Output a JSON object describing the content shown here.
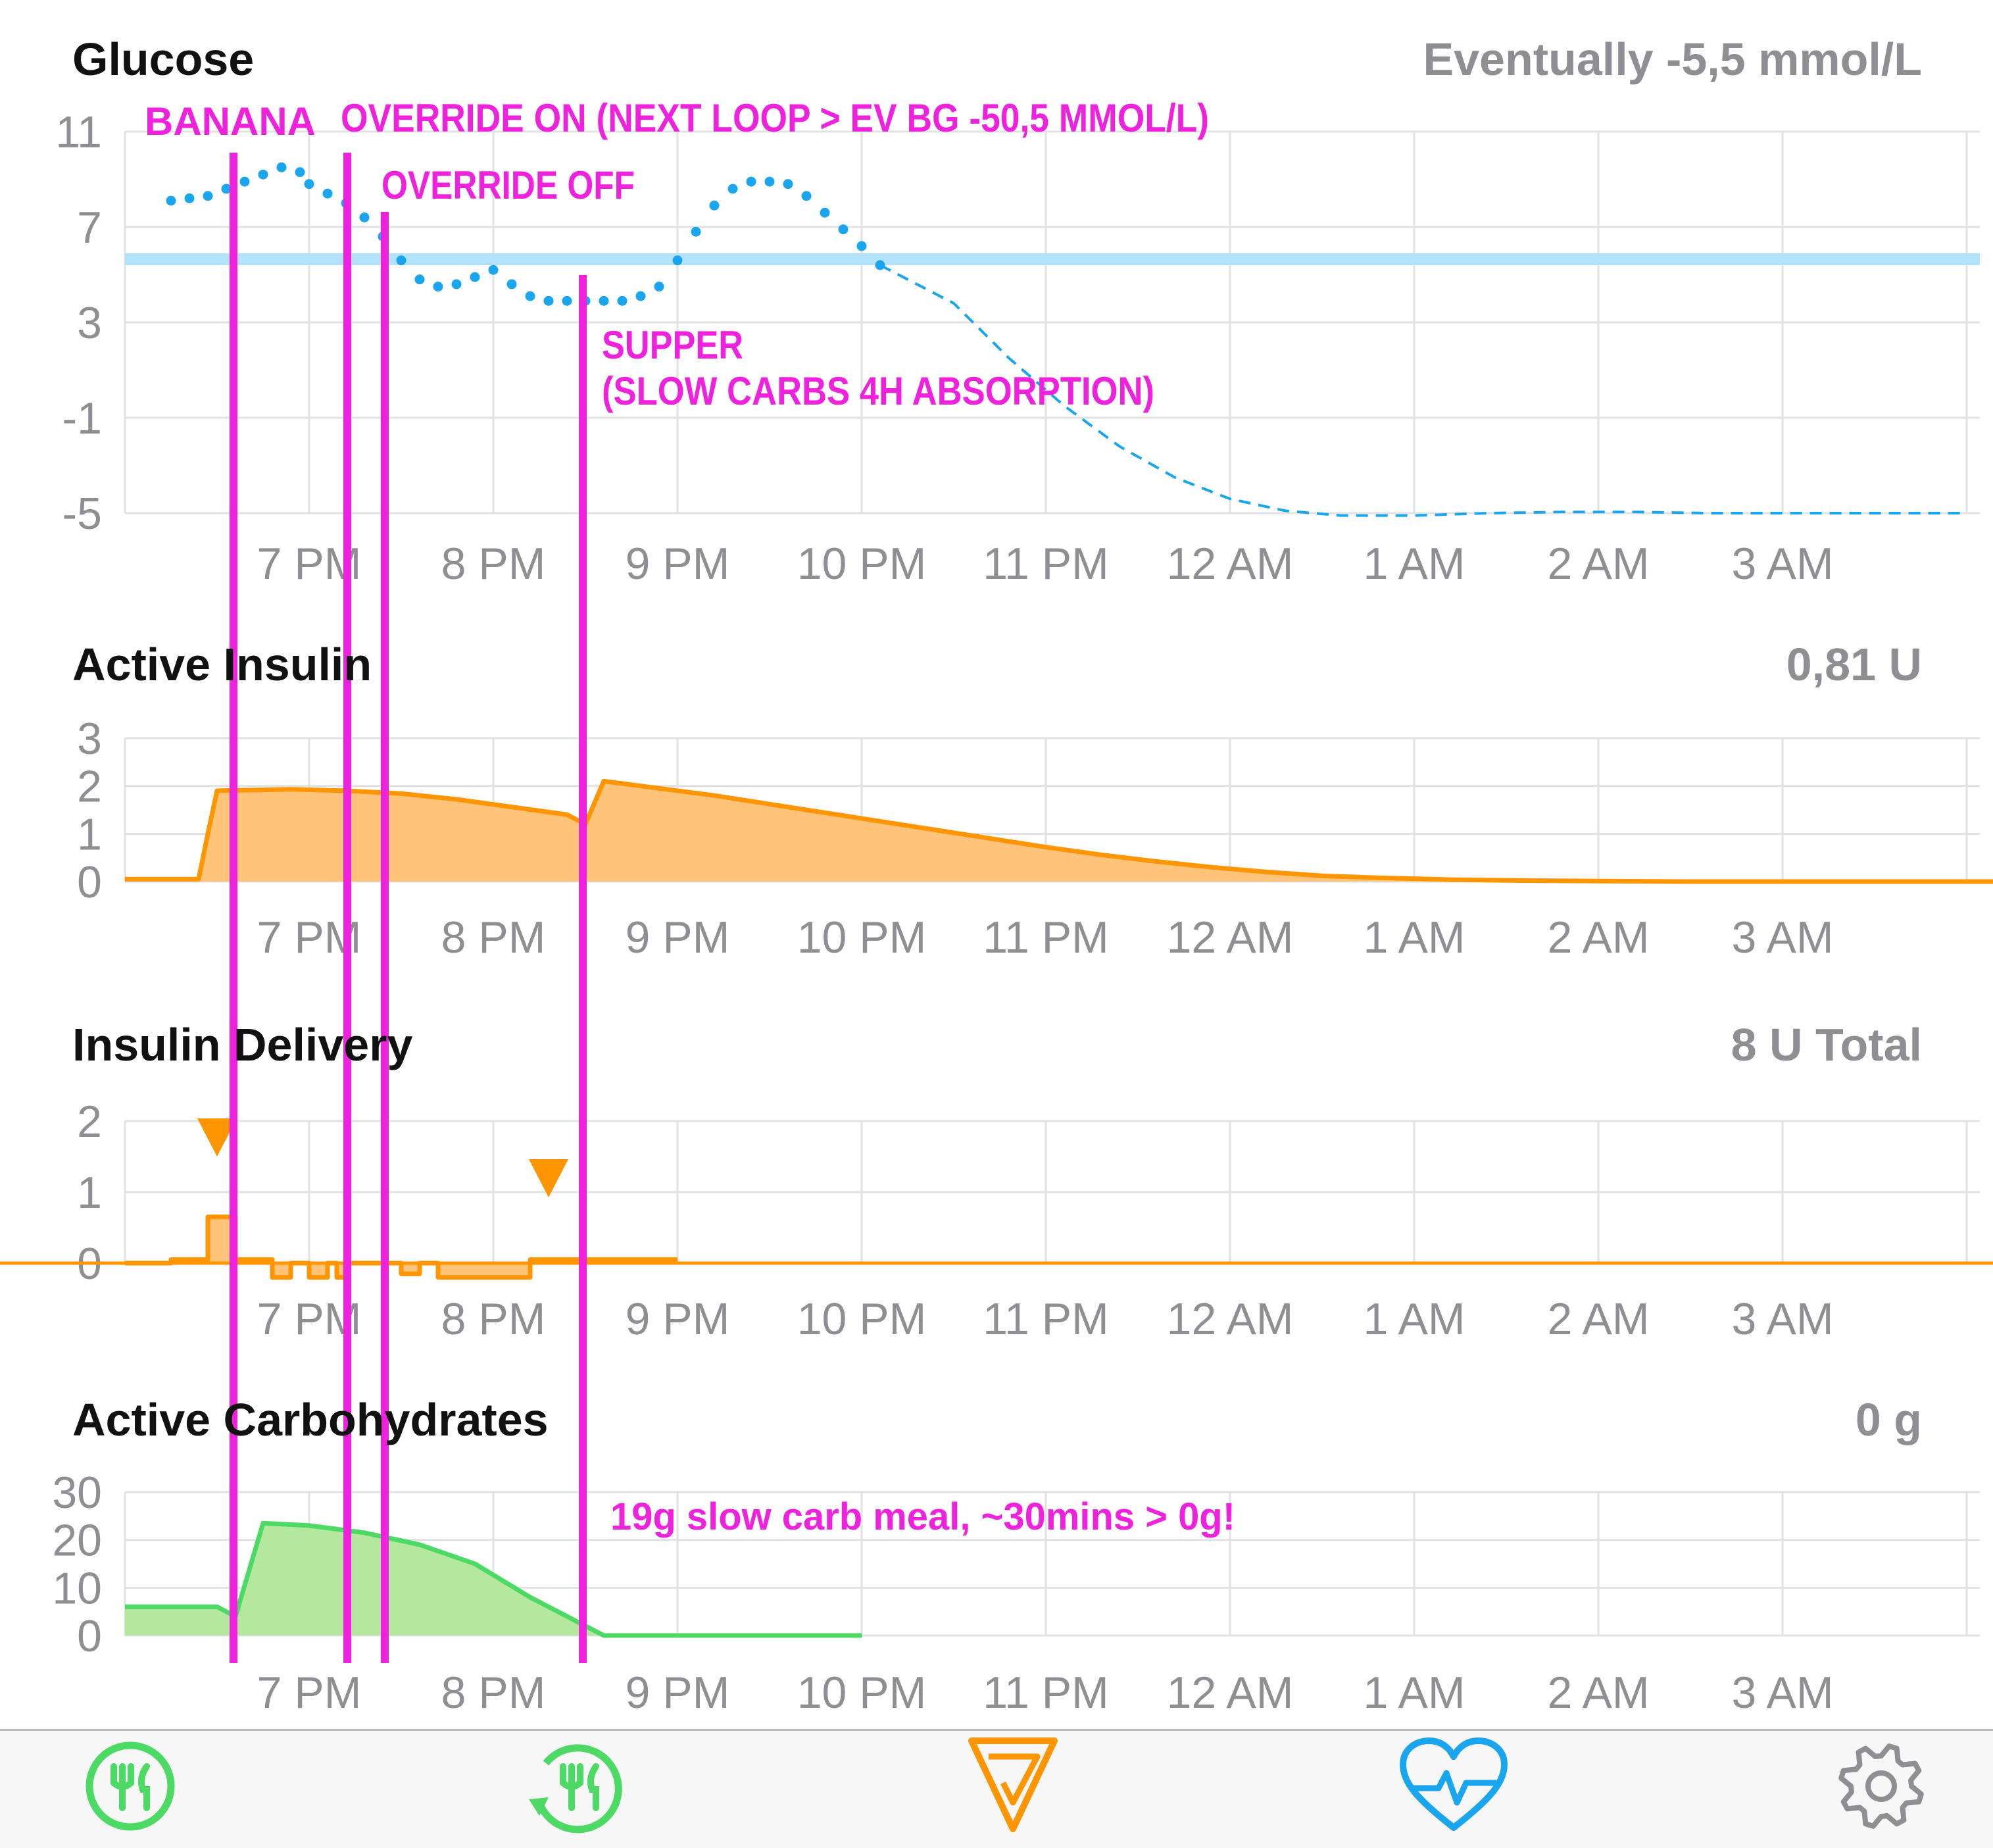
{
  "charts": {
    "glucose": {
      "title": "Glucose",
      "summary": "Eventually -5,5 mmol/L"
    },
    "active_insulin": {
      "title": "Active Insulin",
      "summary": "0,81 U"
    },
    "insulin_delivery": {
      "title": "Insulin Delivery",
      "summary": "8 U Total"
    },
    "active_carbs": {
      "title": "Active Carbohydrates",
      "summary": "0 g"
    }
  },
  "annotations": {
    "banana": "BANANA",
    "override_on": "OVERRIDE ON (NEXT LOOP > EV BG -50,5 MMOL/L)",
    "override_off": "OVERRIDE OFF",
    "supper_1": "SUPPER",
    "supper_2": "(SLOW CARBS 4H ABSORPTION)",
    "carb_note": "19g slow carb meal, ~30mins > 0g!"
  },
  "tabbar": {
    "items": [
      {
        "name": "carb-entry",
        "icon": "fork-knife-icon"
      },
      {
        "name": "bolus",
        "icon": "bolus-fork-knife-icon"
      },
      {
        "name": "loop-status",
        "icon": "loop-triangle-icon"
      },
      {
        "name": "health",
        "icon": "heart-pulse-icon"
      },
      {
        "name": "settings",
        "icon": "gear-icon"
      }
    ]
  },
  "colors": {
    "glucose": "#1aa6ee",
    "target_band": "#b3e3fb",
    "insulin": "#ff9500",
    "insulin_fill": "#ffc47a",
    "carbs": "#4cd964",
    "carbs_fill": "#b4e89e",
    "annotation": "#ee22dd",
    "grid": "#e2e2e2",
    "axis_text": "#8e8e93"
  },
  "chart_data": [
    {
      "type": "scatter",
      "id": "glucose",
      "title": "Glucose",
      "x_ticks": [
        "7 PM",
        "8 PM",
        "9 PM",
        "10 PM",
        "11 PM",
        "12 AM",
        "1 AM",
        "2 AM",
        "3 AM"
      ],
      "x_range_hours": [
        18.0,
        28.0
      ],
      "y_ticks": [
        11,
        7,
        3,
        -1,
        -5
      ],
      "ylim": [
        -5,
        11
      ],
      "target_range": [
        5.4,
        5.9
      ],
      "series": [
        {
          "style": "dots",
          "x": [
            18.25,
            18.35,
            18.45,
            18.55,
            18.65,
            18.75,
            18.85,
            18.95,
            19.0,
            19.1,
            19.2,
            19.3,
            19.4,
            19.5,
            19.6,
            19.7,
            19.8,
            19.9,
            20.0,
            20.1,
            20.2,
            20.3,
            20.4,
            20.5,
            20.6,
            20.7,
            20.8,
            20.9,
            21.0,
            21.1,
            21.2,
            21.3,
            21.4,
            21.5,
            21.6,
            21.7,
            21.8,
            21.9,
            22.0,
            22.1
          ],
          "y": [
            8.1,
            8.2,
            8.3,
            8.6,
            8.9,
            9.2,
            9.5,
            9.3,
            8.8,
            8.4,
            8.0,
            7.4,
            6.6,
            5.6,
            4.8,
            4.5,
            4.6,
            4.9,
            5.2,
            4.6,
            4.1,
            3.9,
            3.9,
            3.9,
            3.9,
            3.9,
            4.1,
            4.5,
            5.6,
            6.8,
            7.9,
            8.6,
            8.9,
            8.9,
            8.8,
            8.3,
            7.6,
            6.9,
            6.2,
            5.4
          ]
        },
        {
          "style": "dashed-forecast",
          "x": [
            22.1,
            22.5,
            22.8,
            23.1,
            23.4,
            23.7,
            24.0,
            24.3,
            24.6,
            25.0,
            25.4,
            25.8,
            26.2,
            26.6,
            27.0,
            27.5,
            28.0
          ],
          "y": [
            5.4,
            3.8,
            1.5,
            -0.5,
            -2.2,
            -3.5,
            -4.4,
            -4.9,
            -5.1,
            -5.1,
            -5.0,
            -4.95,
            -4.95,
            -5.0,
            -5.0,
            -5.0,
            -5.0
          ]
        }
      ]
    },
    {
      "type": "area",
      "id": "active_insulin",
      "title": "Active Insulin",
      "x_ticks": [
        "7 PM",
        "8 PM",
        "9 PM",
        "10 PM",
        "11 PM",
        "12 AM",
        "1 AM",
        "2 AM",
        "3 AM"
      ],
      "x_range_hours": [
        18.0,
        28.0
      ],
      "y_ticks": [
        3,
        2,
        1,
        0
      ],
      "ylim": [
        0,
        3
      ],
      "series": [
        {
          "x": [
            18.0,
            18.4,
            18.45,
            18.5,
            18.9,
            19.2,
            19.5,
            19.8,
            20.1,
            20.4,
            20.5,
            20.6,
            20.9,
            21.2,
            21.5,
            21.8,
            22.1,
            22.4,
            22.7,
            23.0,
            23.3,
            23.6,
            23.9,
            24.2,
            24.5,
            24.8,
            25.2,
            25.6,
            26.0,
            26.5,
            27.0,
            27.5,
            28.0
          ],
          "y": [
            0.05,
            0.05,
            1.0,
            1.9,
            1.93,
            1.9,
            1.84,
            1.72,
            1.56,
            1.4,
            1.2,
            2.1,
            1.95,
            1.8,
            1.62,
            1.44,
            1.26,
            1.08,
            0.9,
            0.72,
            0.56,
            0.42,
            0.3,
            0.2,
            0.12,
            0.08,
            0.04,
            0.02,
            0.01,
            0.0,
            0.0,
            0.0,
            0.0
          ]
        }
      ]
    },
    {
      "type": "area",
      "id": "insulin_delivery",
      "title": "Insulin Delivery",
      "x_ticks": [
        "7 PM",
        "8 PM",
        "9 PM",
        "10 PM",
        "11 PM",
        "12 AM",
        "1 AM",
        "2 AM",
        "3 AM"
      ],
      "x_range_hours": [
        18.0,
        28.0
      ],
      "y_ticks": [
        2,
        1,
        0
      ],
      "ylim": [
        0,
        2
      ],
      "bolus_markers_hours": [
        18.5,
        20.3
      ],
      "series": [
        {
          "x": [
            18.0,
            18.25,
            18.25,
            18.45,
            18.45,
            18.6,
            18.6,
            18.8,
            18.8,
            18.9,
            18.9,
            19.0,
            19.0,
            19.1,
            19.1,
            19.15,
            19.15,
            19.2,
            19.2,
            19.5,
            19.5,
            19.6,
            19.6,
            19.7,
            19.7,
            19.75,
            19.75,
            20.2,
            20.2,
            21.0
          ],
          "y": [
            0,
            0,
            0.05,
            0.05,
            0.65,
            0.65,
            0.05,
            0.05,
            -0.2,
            -0.2,
            0.0,
            0.0,
            -0.2,
            -0.2,
            0.0,
            0.0,
            -0.2,
            -0.2,
            0.0,
            0.0,
            -0.15,
            -0.15,
            0.0,
            0.0,
            -0.2,
            -0.2,
            -0.2,
            -0.2,
            0.05,
            0.05
          ]
        }
      ]
    },
    {
      "type": "area",
      "id": "active_carbs",
      "title": "Active Carbohydrates",
      "x_ticks": [
        "7 PM",
        "8 PM",
        "9 PM",
        "10 PM",
        "11 PM",
        "12 AM",
        "1 AM",
        "2 AM",
        "3 AM"
      ],
      "x_range_hours": [
        18.0,
        28.0
      ],
      "y_ticks": [
        30,
        20,
        10,
        0
      ],
      "ylim": [
        0,
        30
      ],
      "series": [
        {
          "x": [
            18.0,
            18.4,
            18.5,
            18.6,
            18.75,
            19.0,
            19.3,
            19.6,
            19.9,
            20.2,
            20.6,
            20.7,
            20.8,
            20.9,
            21.1,
            21.2,
            21.4,
            21.75,
            22.0
          ],
          "y": [
            6,
            6,
            6,
            4,
            23.5,
            23,
            21.5,
            19,
            15,
            8,
            0,
            0,
            0,
            0,
            0,
            0,
            0,
            0,
            0
          ]
        }
      ]
    }
  ]
}
